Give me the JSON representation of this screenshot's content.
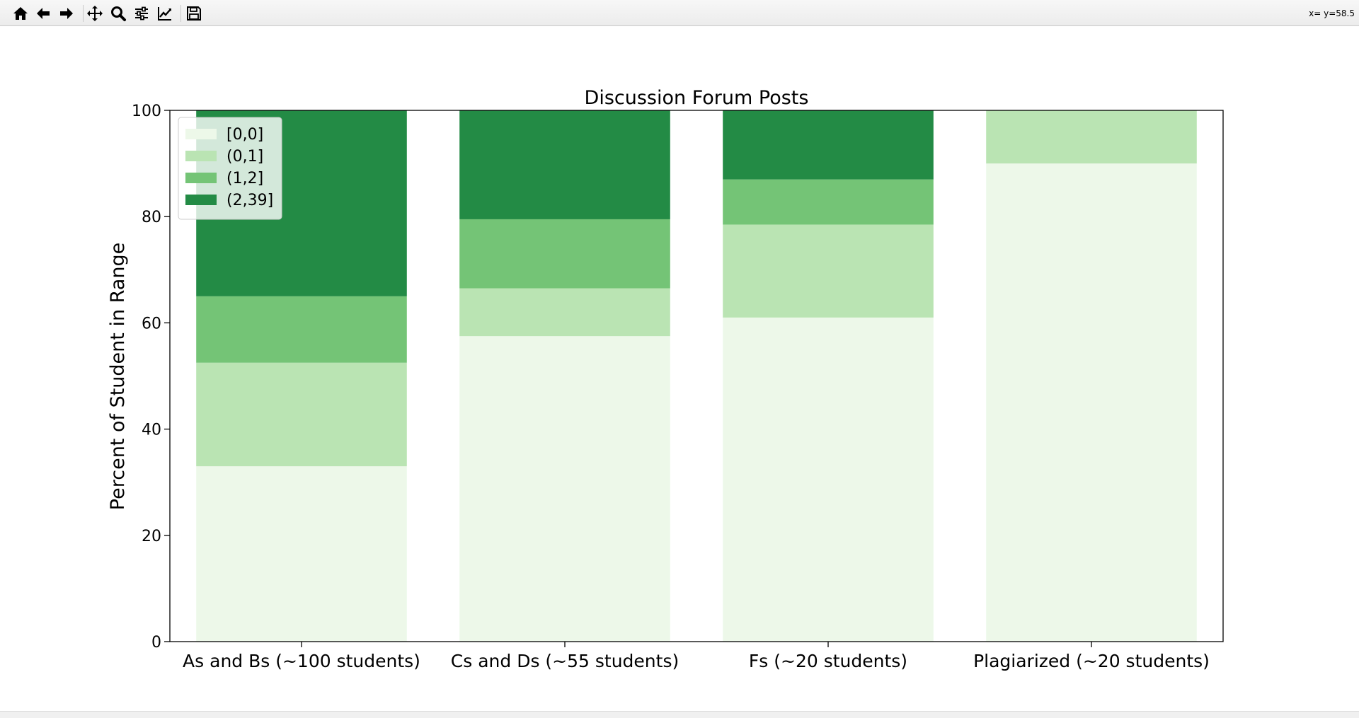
{
  "toolbar": {
    "buttons": [
      {
        "name": "home-icon"
      },
      {
        "name": "back-arrow-icon"
      },
      {
        "name": "forward-arrow-icon"
      },
      {
        "name": "pan-move-icon"
      },
      {
        "name": "zoom-magnifier-icon"
      },
      {
        "name": "subplots-configure-icon"
      },
      {
        "name": "edit-axes-icon"
      },
      {
        "name": "save-figure-icon"
      }
    ],
    "coords_readout": "x= y=58.5"
  },
  "chart_data": {
    "type": "bar",
    "stacked": true,
    "title": "Discussion Forum Posts",
    "xlabel": "",
    "ylabel": "Percent of Student in Range",
    "ylim": [
      0,
      100
    ],
    "yticks": [
      "0",
      "20",
      "40",
      "60",
      "80",
      "100"
    ],
    "categories": [
      "As and Bs (~100 students)",
      "Cs and Ds (~55 students)",
      "Fs (~20 students)",
      "Plagiarized (~20 students)"
    ],
    "series": [
      {
        "name": "[0,0]",
        "color": "#edf8e9",
        "values": [
          33,
          57.5,
          61,
          90
        ]
      },
      {
        "name": "(0,1]",
        "color": "#bae4b3",
        "values": [
          19.5,
          9,
          17.5,
          10
        ]
      },
      {
        "name": "(1,2]",
        "color": "#74c476",
        "values": [
          12.5,
          13,
          8.5,
          0
        ]
      },
      {
        "name": "(2,39]",
        "color": "#238b45",
        "values": [
          35,
          20.5,
          13,
          0
        ]
      }
    ],
    "legend_position": "top-left",
    "grid": false
  }
}
